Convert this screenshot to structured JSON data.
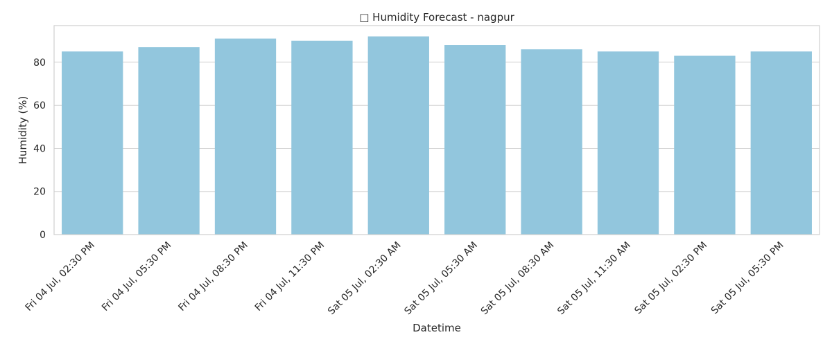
{
  "chart_data": {
    "type": "bar",
    "title": "□ Humidity Forecast - nagpur",
    "xlabel": "Datetime",
    "ylabel": "Humidity (%)",
    "categories": [
      "Fri 04 Jul, 02:30 PM",
      "Fri 04 Jul, 05:30 PM",
      "Fri 04 Jul, 08:30 PM",
      "Fri 04 Jul, 11:30 PM",
      "Sat 05 Jul, 02:30 AM",
      "Sat 05 Jul, 05:30 AM",
      "Sat 05 Jul, 08:30 AM",
      "Sat 05 Jul, 11:30 AM",
      "Sat 05 Jul, 02:30 PM",
      "Sat 05 Jul, 05:30 PM"
    ],
    "values": [
      85,
      87,
      91,
      90,
      92,
      88,
      86,
      85,
      83,
      85
    ],
    "ylim": [
      0,
      97
    ],
    "yticks": [
      0,
      20,
      40,
      60,
      80
    ],
    "grid": true,
    "bar_color": "#92c6dd",
    "grid_color": "#d3d3d3"
  }
}
